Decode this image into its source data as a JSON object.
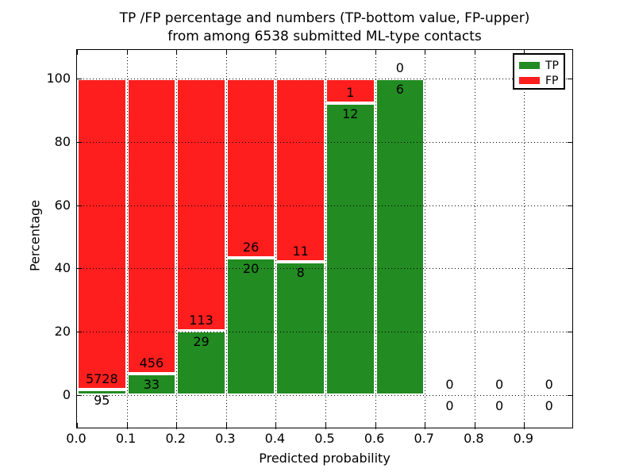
{
  "figure": {
    "title_line1": "TP /FP percentage and numbers (TP-bottom value, FP-upper)",
    "title_line2": "from among 6538 submitted ML-type contacts"
  },
  "axes": {
    "xlabel": "Predicted probability",
    "ylabel": "Percentage",
    "xtick_labels": [
      "0.0",
      "0.1",
      "0.2",
      "0.3",
      "0.4",
      "0.5",
      "0.6",
      "0.7",
      "0.8",
      "0.9"
    ],
    "ytick_values": [
      0,
      20,
      40,
      60,
      80,
      100
    ]
  },
  "legend": {
    "items": [
      {
        "label": "TP",
        "color": "#228b22"
      },
      {
        "label": "FP",
        "color": "#fe1e1e"
      }
    ]
  },
  "colors": {
    "tp": "#228b22",
    "fp": "#fe1e1e",
    "bar_edge": "#ffffff",
    "axis": "#000000",
    "background": "#ffffff"
  },
  "chart_data": {
    "type": "bar",
    "stacked": true,
    "normalized_to_percent": true,
    "title": "TP /FP percentage and numbers (TP-bottom value, FP-upper) from among 6538 submitted ML-type contacts",
    "xlabel": "Predicted probability",
    "ylabel": "Percentage",
    "bin_edges": [
      0.0,
      0.1,
      0.2,
      0.3,
      0.4,
      0.5,
      0.6,
      0.7,
      0.8,
      0.9,
      1.0
    ],
    "categories": [
      "0.0-0.1",
      "0.1-0.2",
      "0.2-0.3",
      "0.3-0.4",
      "0.4-0.5",
      "0.5-0.6",
      "0.6-0.7",
      "0.7-0.8",
      "0.8-0.9",
      "0.9-1.0"
    ],
    "series": [
      {
        "name": "TP",
        "color": "#228b22",
        "values": [
          95,
          33,
          29,
          20,
          8,
          12,
          6,
          0,
          0,
          0
        ]
      },
      {
        "name": "FP",
        "color": "#fe1e1e",
        "values": [
          5728,
          456,
          113,
          26,
          11,
          1,
          0,
          0,
          0,
          0
        ]
      }
    ],
    "total_contacts": 6538,
    "ylim": [
      0,
      100
    ],
    "yticks": [
      0,
      20,
      40,
      60,
      80,
      100
    ],
    "xticks": [
      0.0,
      0.1,
      0.2,
      0.3,
      0.4,
      0.5,
      0.6,
      0.7,
      0.8,
      0.9
    ],
    "grid": "dotted",
    "legend_position": "upper right"
  }
}
